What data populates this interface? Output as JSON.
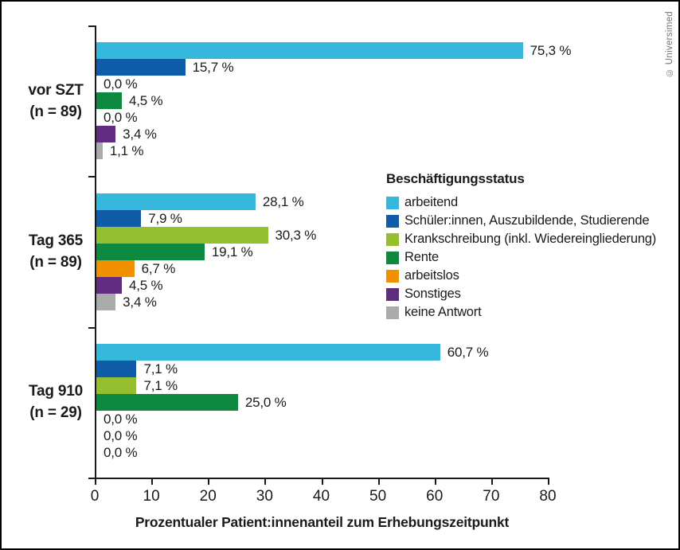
{
  "frame": {
    "copyright": "© Universimed"
  },
  "colors": {
    "axis": "#1a1a1a",
    "text": "#1a1a1a",
    "copyright": "#757575",
    "background": "#ffffff",
    "border": "#000000"
  },
  "chart_data": {
    "type": "bar",
    "orientation": "horizontal",
    "xlabel": "Prozentualer Patient:innenanteil zum Erhebungszeitpunkt",
    "xlim": [
      0,
      80
    ],
    "xticks": [
      "0",
      "10",
      "20",
      "30",
      "40",
      "50",
      "60",
      "70",
      "80"
    ],
    "grid": false,
    "legend_title": "Beschäftigungsstatus",
    "legend_position": "right-middle",
    "series": [
      {
        "name": "arbeitend",
        "color": "#35b8dc"
      },
      {
        "name": "Schüler:innen, Auszubildende, Studierende",
        "color": "#0f5ca8"
      },
      {
        "name": "Krankschreibung (inkl. Wiedereingliederung)",
        "color": "#96be31"
      },
      {
        "name": "Rente",
        "color": "#0d8a40"
      },
      {
        "name": "arbeitslos",
        "color": "#f29100"
      },
      {
        "name": "Sonstiges",
        "color": "#5f2c7f"
      },
      {
        "name": "keine Antwort",
        "color": "#ababab"
      }
    ],
    "groups": [
      {
        "label": [
          "vor SZT",
          "(n = 89)"
        ],
        "values": [
          75.3,
          15.7,
          0.0,
          4.5,
          0.0,
          3.4,
          1.1
        ],
        "value_labels": [
          "75,3 %",
          "15,7 %",
          "0,0 %",
          "4,5 %",
          "0,0 %",
          "3,4 %",
          "1,1 %"
        ]
      },
      {
        "label": [
          "Tag 365",
          "(n = 89)"
        ],
        "values": [
          28.1,
          7.9,
          30.3,
          19.1,
          6.7,
          4.5,
          3.4
        ],
        "value_labels": [
          "28,1 %",
          "7,9 %",
          "30,3 %",
          "19,1 %",
          "6,7 %",
          "4,5 %",
          "3,4 %"
        ]
      },
      {
        "label": [
          "Tag 910",
          "(n = 29)"
        ],
        "values": [
          60.7,
          7.1,
          7.1,
          25.0,
          0.0,
          0.0,
          0.0
        ],
        "value_labels": [
          "60,7 %",
          "7,1 %",
          "7,1 %",
          "25,0 %",
          "0,0 %",
          "0,0 %",
          "0,0 %"
        ]
      }
    ]
  }
}
